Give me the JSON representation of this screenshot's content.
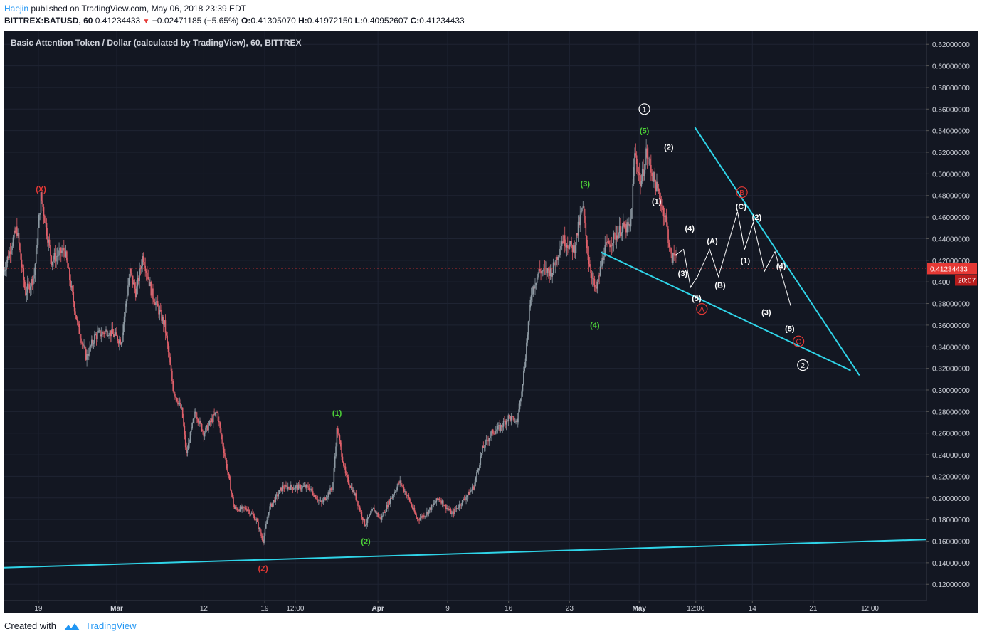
{
  "header": {
    "author": "Haejin",
    "published_text": "published on TradingView.com, May 06, 2018 23:39 EDT",
    "symbol": "BITTREX:BATUSD, 60",
    "last": "0.41234433",
    "change": "−0.02471185 (−5.65%)",
    "o_label": "O:",
    "o": "0.41305070",
    "h_label": "H:",
    "h": "0.41972150",
    "l_label": "L:",
    "l": "0.40952607",
    "c_label": "C:",
    "c": "0.41234433"
  },
  "footer": {
    "created_with": "Created with",
    "brand": "TradingView"
  },
  "colors": {
    "background": "#131722",
    "grid": "#1f2433",
    "up": "#8e9aa3",
    "down": "#e0606a",
    "trendline": "#2fd4e8",
    "label_white": "#ffffff",
    "label_green": "#4cd137",
    "label_red": "#e53935",
    "price_badge": "#e53935"
  },
  "chart_data": {
    "type": "candlestick",
    "title": "Basic Attention Token / Dollar (calculated by TradingView), 60, BITTREX",
    "y_range": [
      0.105,
      0.632
    ],
    "y_ticks": [
      "0.62000000",
      "0.60000000",
      "0.58000000",
      "0.56000000",
      "0.54000000",
      "0.52000000",
      "0.50000000",
      "0.48000000",
      "0.46000000",
      "0.44000000",
      "0.42000000",
      "0.400",
      "0.38000000",
      "0.36000000",
      "0.34000000",
      "0.32000000",
      "0.30000000",
      "0.28000000",
      "0.26000000",
      "0.24000000",
      "0.22000000",
      "0.20000000",
      "0.18000000",
      "0.16000000",
      "0.14000000",
      "0.12000000"
    ],
    "x_ticks": [
      {
        "t": 6,
        "label": "19"
      },
      {
        "t": 15,
        "label": "Mar"
      },
      {
        "t": 25,
        "label": "12"
      },
      {
        "t": 32,
        "label": "19"
      },
      {
        "t": 35.5,
        "label": "12:00"
      },
      {
        "t": 45,
        "label": "Apr"
      },
      {
        "t": 53,
        "label": "9"
      },
      {
        "t": 60,
        "label": "16"
      },
      {
        "t": 67,
        "label": "23"
      },
      {
        "t": 75,
        "label": "May"
      },
      {
        "t": 81.5,
        "label": "12:00"
      },
      {
        "t": 88,
        "label": "14"
      },
      {
        "t": 95,
        "label": "21"
      },
      {
        "t": 101.5,
        "label": "12:00"
      }
    ],
    "x_range": [
      2,
      108
    ],
    "price_path": [
      [
        2,
        0.41
      ],
      [
        3.5,
        0.45
      ],
      [
        4.5,
        0.39
      ],
      [
        5.5,
        0.405
      ],
      [
        6.3,
        0.48
      ],
      [
        7.5,
        0.42
      ],
      [
        9,
        0.43
      ],
      [
        10.5,
        0.36
      ],
      [
        11.5,
        0.33
      ],
      [
        12.5,
        0.35
      ],
      [
        14,
        0.355
      ],
      [
        15.5,
        0.345
      ],
      [
        16.5,
        0.41
      ],
      [
        17.2,
        0.39
      ],
      [
        18,
        0.425
      ],
      [
        19,
        0.39
      ],
      [
        20.5,
        0.36
      ],
      [
        21.5,
        0.3
      ],
      [
        22.5,
        0.28
      ],
      [
        23,
        0.24
      ],
      [
        24,
        0.28
      ],
      [
        25,
        0.26
      ],
      [
        26.5,
        0.28
      ],
      [
        27.5,
        0.235
      ],
      [
        28.5,
        0.19
      ],
      [
        30,
        0.19
      ],
      [
        31,
        0.18
      ],
      [
        31.8,
        0.16
      ],
      [
        32.5,
        0.19
      ],
      [
        34,
        0.21
      ],
      [
        35.5,
        0.21
      ],
      [
        37,
        0.21
      ],
      [
        38.5,
        0.195
      ],
      [
        39.8,
        0.21
      ],
      [
        40.3,
        0.265
      ],
      [
        41.3,
        0.22
      ],
      [
        42.5,
        0.2
      ],
      [
        43.5,
        0.175
      ],
      [
        44.5,
        0.19
      ],
      [
        45.3,
        0.18
      ],
      [
        46.5,
        0.2
      ],
      [
        47.5,
        0.215
      ],
      [
        48.5,
        0.2
      ],
      [
        49.5,
        0.18
      ],
      [
        50.5,
        0.185
      ],
      [
        52,
        0.2
      ],
      [
        53.5,
        0.185
      ],
      [
        55,
        0.2
      ],
      [
        56,
        0.21
      ],
      [
        57,
        0.245
      ],
      [
        58,
        0.26
      ],
      [
        59,
        0.265
      ],
      [
        60,
        0.275
      ],
      [
        61,
        0.27
      ],
      [
        61.8,
        0.32
      ],
      [
        62.6,
        0.39
      ],
      [
        63.5,
        0.41
      ],
      [
        65,
        0.41
      ],
      [
        66.2,
        0.44
      ],
      [
        67.5,
        0.43
      ],
      [
        68.5,
        0.47
      ],
      [
        69.2,
        0.42
      ],
      [
        70,
        0.39
      ],
      [
        71,
        0.43
      ],
      [
        72,
        0.44
      ],
      [
        73,
        0.45
      ],
      [
        74,
        0.45
      ],
      [
        74.5,
        0.52
      ],
      [
        75.2,
        0.49
      ],
      [
        75.8,
        0.52
      ],
      [
        76.5,
        0.5
      ],
      [
        77.3,
        0.48
      ],
      [
        78,
        0.46
      ],
      [
        78.7,
        0.42
      ],
      [
        79.4,
        0.43
      ]
    ],
    "projection_path": [
      [
        79.2,
        0.425
      ],
      [
        80.1,
        0.43
      ],
      [
        80.9,
        0.395
      ],
      [
        81.7,
        0.405
      ],
      [
        83.1,
        0.43
      ],
      [
        84.1,
        0.405
      ],
      [
        86.3,
        0.465
      ],
      [
        87.1,
        0.43
      ],
      [
        88.1,
        0.455
      ],
      [
        89.4,
        0.41
      ],
      [
        90.6,
        0.428
      ],
      [
        92.4,
        0.378
      ]
    ],
    "trendlines": [
      {
        "name": "lower-support",
        "from": [
          2,
          0.1355
        ],
        "to": [
          108,
          0.1615
        ]
      },
      {
        "name": "wedge-upper",
        "from": [
          81.4,
          0.543
        ],
        "to": [
          100.3,
          0.3135
        ]
      },
      {
        "name": "wedge-lower",
        "from": [
          70.6,
          0.4275
        ],
        "to": [
          99.3,
          0.318
        ]
      }
    ],
    "wave_labels": [
      {
        "text": "(X)",
        "t": 6.3,
        "v": 0.486,
        "color": "red"
      },
      {
        "text": "(Z)",
        "t": 31.8,
        "v": 0.135,
        "color": "red"
      },
      {
        "text": "(1)",
        "t": 40.3,
        "v": 0.279,
        "color": "green"
      },
      {
        "text": "(2)",
        "t": 43.6,
        "v": 0.16,
        "color": "green"
      },
      {
        "text": "(3)",
        "t": 68.8,
        "v": 0.491,
        "color": "green"
      },
      {
        "text": "(4)",
        "t": 69.9,
        "v": 0.36,
        "color": "green"
      },
      {
        "text": "(5)",
        "t": 75.6,
        "v": 0.54,
        "color": "green"
      },
      {
        "text": "(1)",
        "t": 77.0,
        "v": 0.475,
        "color": "white"
      },
      {
        "text": "(2)",
        "t": 78.4,
        "v": 0.525,
        "color": "white"
      },
      {
        "text": "(3)",
        "t": 80.0,
        "v": 0.408,
        "color": "white"
      },
      {
        "text": "(4)",
        "t": 80.8,
        "v": 0.45,
        "color": "white"
      },
      {
        "text": "(5)",
        "t": 81.6,
        "v": 0.385,
        "color": "white"
      },
      {
        "text": "(A)",
        "t": 83.4,
        "v": 0.438,
        "color": "white"
      },
      {
        "text": "(B)",
        "t": 84.3,
        "v": 0.397,
        "color": "white"
      },
      {
        "text": "(C)",
        "t": 86.7,
        "v": 0.47,
        "color": "white"
      },
      {
        "text": "(1)",
        "t": 87.2,
        "v": 0.42,
        "color": "white"
      },
      {
        "text": "(2)",
        "t": 88.5,
        "v": 0.46,
        "color": "white"
      },
      {
        "text": "(3)",
        "t": 89.6,
        "v": 0.372,
        "color": "white"
      },
      {
        "text": "(4)",
        "t": 91.3,
        "v": 0.415,
        "color": "white"
      },
      {
        "text": "(5)",
        "t": 92.3,
        "v": 0.357,
        "color": "white"
      }
    ],
    "circled_labels": [
      {
        "text": "1",
        "t": 75.6,
        "v": 0.56,
        "color": "white"
      },
      {
        "text": "2",
        "t": 93.8,
        "v": 0.323,
        "color": "white"
      },
      {
        "text": "A",
        "t": 82.2,
        "v": 0.375,
        "color": "red"
      },
      {
        "text": "B",
        "t": 86.8,
        "v": 0.483,
        "color": "red"
      },
      {
        "text": "C",
        "t": 93.3,
        "v": 0.345,
        "color": "red"
      }
    ],
    "last_price": {
      "value": "0.41234433",
      "v": 0.41234,
      "countdown": "20:07"
    }
  }
}
